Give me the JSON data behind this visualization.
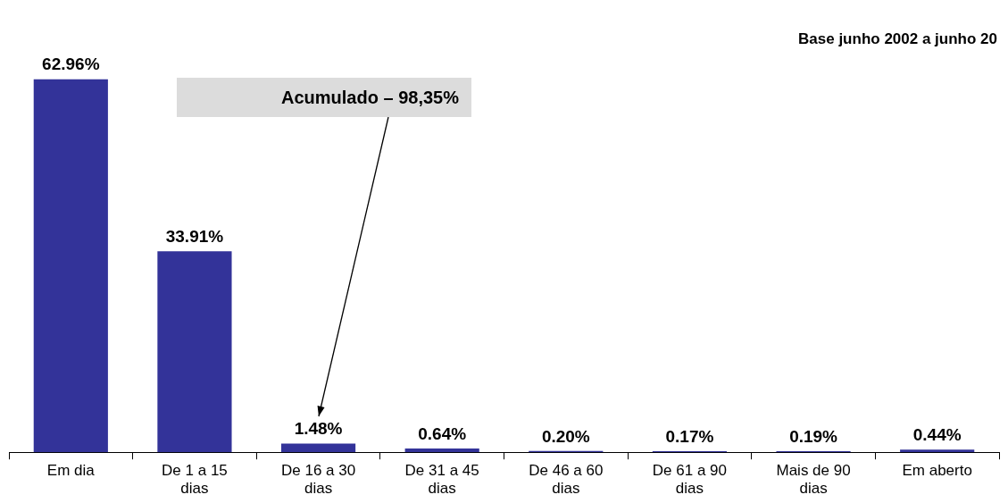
{
  "chart_data": {
    "type": "bar",
    "title": "Base junho 2002 a junho 20",
    "categories": [
      "Em dia",
      "De 1 a 15 dias",
      "De 16 a 30 dias",
      "De 31 a 45 dias",
      "De 46 a 60 dias",
      "De 61 a 90 dias",
      "Mais de 90 dias",
      "Em aberto"
    ],
    "values": [
      62.96,
      33.91,
      1.48,
      0.64,
      0.2,
      0.17,
      0.19,
      0.44
    ],
    "value_labels": [
      "62.96%",
      "33.91%",
      "1.48%",
      "0.64%",
      "0.20%",
      "0.17%",
      "0.19%",
      "0.44%"
    ],
    "color": "#333399",
    "annotations": [
      "Acumulado – 98,35%"
    ],
    "grid": false,
    "legend": false
  }
}
